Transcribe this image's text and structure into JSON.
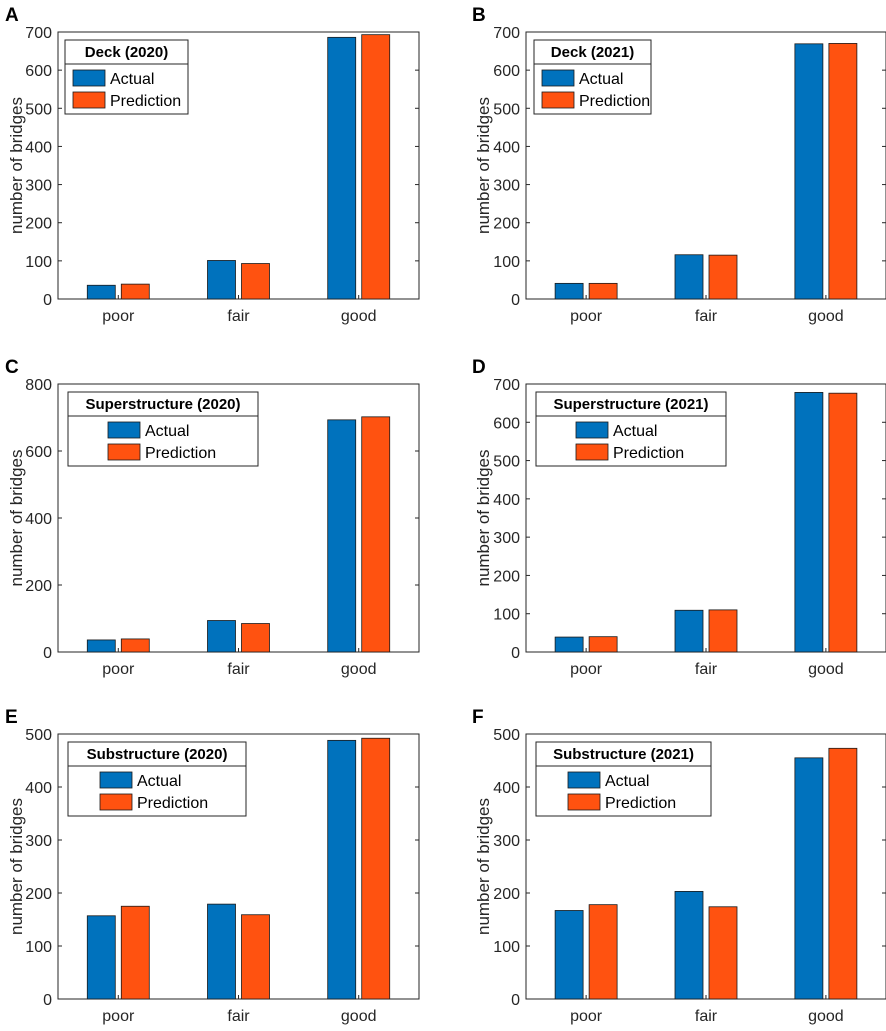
{
  "figure": {
    "series_colors": {
      "Actual": "#0072BD",
      "Prediction": "#FF5210"
    },
    "bar_stroke": "#1a1a1a"
  },
  "chart_data": [
    {
      "panel": "A",
      "type": "bar",
      "title": "Deck (2020)",
      "categories": [
        "poor",
        "fair",
        "good"
      ],
      "series": [
        {
          "name": "Actual",
          "values": [
            36,
            101,
            686
          ]
        },
        {
          "name": "Prediction",
          "values": [
            39,
            93,
            693
          ]
        }
      ],
      "xlabel": "",
      "ylabel": "number of bridges",
      "ylim": [
        0,
        700
      ],
      "yticks": [
        0,
        100,
        200,
        300,
        400,
        500,
        600,
        700
      ],
      "legend_position": "top-left",
      "legend_title_bold": true
    },
    {
      "panel": "B",
      "type": "bar",
      "title": "Deck (2021)",
      "categories": [
        "poor",
        "fair",
        "good"
      ],
      "series": [
        {
          "name": "Actual",
          "values": [
            41,
            116,
            669
          ]
        },
        {
          "name": "Prediction",
          "values": [
            41,
            115,
            670
          ]
        }
      ],
      "xlabel": "",
      "ylabel": "number of bridges",
      "ylim": [
        0,
        700
      ],
      "yticks": [
        0,
        100,
        200,
        300,
        400,
        500,
        600,
        700
      ],
      "legend_position": "top-left",
      "legend_title_bold": true
    },
    {
      "panel": "C",
      "type": "bar",
      "title": "Superstructure (2020)",
      "categories": [
        "poor",
        "fair",
        "good"
      ],
      "series": [
        {
          "name": "Actual",
          "values": [
            36,
            94,
            693
          ]
        },
        {
          "name": "Prediction",
          "values": [
            39,
            85,
            702
          ]
        }
      ],
      "xlabel": "",
      "ylabel": "number of bridges",
      "ylim": [
        0,
        800
      ],
      "yticks": [
        0,
        200,
        400,
        600,
        800
      ],
      "legend_position": "top-left",
      "legend_title_bold": true
    },
    {
      "panel": "D",
      "type": "bar",
      "title": "Superstructure (2021)",
      "categories": [
        "poor",
        "fair",
        "good"
      ],
      "series": [
        {
          "name": "Actual",
          "values": [
            39,
            109,
            678
          ]
        },
        {
          "name": "Prediction",
          "values": [
            40,
            110,
            676
          ]
        }
      ],
      "xlabel": "",
      "ylabel": "number of bridges",
      "ylim": [
        0,
        700
      ],
      "yticks": [
        0,
        100,
        200,
        300,
        400,
        500,
        600,
        700
      ],
      "legend_position": "top-left",
      "legend_title_bold": true
    },
    {
      "panel": "E",
      "type": "bar",
      "title": "Substructure (2020)",
      "categories": [
        "poor",
        "fair",
        "good"
      ],
      "series": [
        {
          "name": "Actual",
          "values": [
            157,
            179,
            488
          ]
        },
        {
          "name": "Prediction",
          "values": [
            175,
            159,
            492
          ]
        }
      ],
      "xlabel": "",
      "ylabel": "number of bridges",
      "ylim": [
        0,
        500
      ],
      "yticks": [
        0,
        100,
        200,
        300,
        400,
        500
      ],
      "legend_position": "top-left",
      "legend_title_bold": true
    },
    {
      "panel": "F",
      "type": "bar",
      "title": "Substructure (2021)",
      "categories": [
        "poor",
        "fair",
        "good"
      ],
      "series": [
        {
          "name": "Actual",
          "values": [
            167,
            203,
            455
          ]
        },
        {
          "name": "Prediction",
          "values": [
            178,
            174,
            473
          ]
        }
      ],
      "xlabel": "",
      "ylabel": "number of bridges",
      "ylim": [
        0,
        500
      ],
      "yticks": [
        0,
        100,
        200,
        300,
        400,
        500
      ],
      "legend_position": "top-left",
      "legend_title_bold": true
    }
  ]
}
